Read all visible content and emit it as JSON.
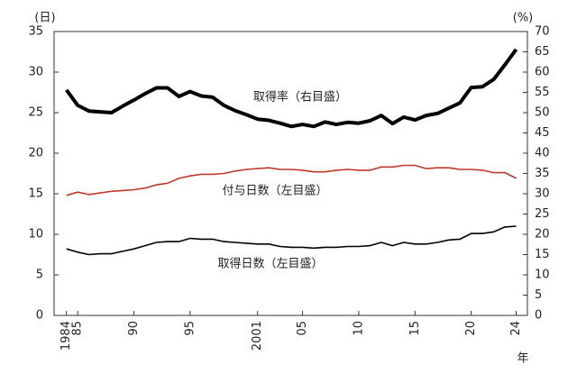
{
  "chart_data": {
    "type": "line",
    "y_unit_label": "(日)",
    "y2_unit_label": "(%)",
    "x_unit_label": "年",
    "x": [
      1984,
      1985,
      1986,
      1987,
      1988,
      1989,
      1990,
      1991,
      1992,
      1993,
      1994,
      1995,
      1996,
      1997,
      1998,
      1999,
      2000,
      2001,
      2002,
      2003,
      2004,
      2005,
      2006,
      2007,
      2008,
      2009,
      2010,
      2011,
      2012,
      2013,
      2014,
      2015,
      2016,
      2017,
      2018,
      2019,
      2020,
      2021,
      2022,
      2023,
      2024
    ],
    "xlim": [
      1982.9,
      2025
    ],
    "xticks": [
      1984,
      {
        "value": 1985,
        "label": "85"
      },
      {
        "value": 1990,
        "label": "90"
      },
      {
        "value": 1995,
        "label": "95"
      },
      2001,
      {
        "value": 2005,
        "label": "05"
      },
      {
        "value": 2010,
        "label": "10"
      },
      {
        "value": 2015,
        "label": "15"
      },
      {
        "value": 2020,
        "label": "20"
      },
      {
        "value": 2024,
        "label": "24"
      }
    ],
    "ylim": [
      0,
      35
    ],
    "yticks": [
      0,
      5,
      10,
      15,
      20,
      25,
      30,
      35
    ],
    "y2lim": [
      0,
      70
    ],
    "y2ticks": [
      0,
      5,
      10,
      15,
      20,
      25,
      30,
      35,
      40,
      45,
      50,
      55,
      60,
      65,
      70
    ],
    "grid": false,
    "series": [
      {
        "name": "取得率（右目盛）",
        "color": "#000000",
        "axis": "y2",
        "values": [
          55.6,
          51.8,
          50.4,
          50.2,
          50.0,
          51.6,
          53.1,
          54.7,
          56.1,
          56.1,
          54.0,
          55.2,
          54.1,
          53.8,
          51.8,
          50.5,
          49.5,
          48.4,
          48.1,
          47.4,
          46.6,
          47.1,
          46.6,
          47.7,
          47.1,
          47.6,
          47.4,
          48.0,
          49.3,
          47.3,
          48.9,
          48.2,
          49.3,
          49.8,
          51.1,
          52.4,
          56.2,
          56.4,
          58.2,
          61.8,
          65.6
        ]
      },
      {
        "name": "付与日数（左目盛）",
        "color": "#c0392b",
        "values": [
          14.8,
          15.2,
          14.9,
          15.1,
          15.3,
          15.4,
          15.5,
          15.7,
          16.1,
          16.3,
          16.9,
          17.2,
          17.4,
          17.4,
          17.5,
          17.8,
          18.0,
          18.1,
          18.2,
          18.0,
          18.0,
          17.9,
          17.7,
          17.7,
          17.9,
          18.0,
          17.9,
          17.9,
          18.3,
          18.3,
          18.5,
          18.5,
          18.1,
          18.2,
          18.2,
          18.0,
          18.0,
          17.9,
          17.6,
          17.6,
          16.9
        ]
      },
      {
        "name": "取得日数（左目盛）",
        "color": "#000000",
        "values": [
          8.2,
          7.8,
          7.5,
          7.6,
          7.6,
          7.9,
          8.2,
          8.6,
          9.0,
          9.1,
          9.1,
          9.5,
          9.4,
          9.4,
          9.1,
          9.0,
          8.9,
          8.8,
          8.8,
          8.5,
          8.4,
          8.4,
          8.3,
          8.4,
          8.4,
          8.5,
          8.5,
          8.6,
          9.0,
          8.6,
          9.0,
          8.8,
          8.8,
          9.0,
          9.3,
          9.4,
          10.1,
          10.1,
          10.3,
          10.9,
          11.0
        ]
      }
    ]
  }
}
